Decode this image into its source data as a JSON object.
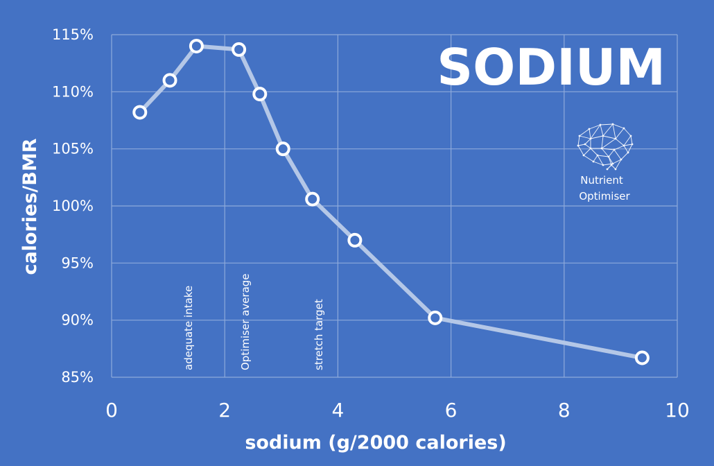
{
  "colors": {
    "background": "#4472c4",
    "grid": "#8eaadb",
    "line": "#b4c7e7",
    "marker_fill": "#4472c4",
    "marker_stroke": "#ffffff",
    "text": "#ffffff"
  },
  "logo": {
    "icon": "brain-network-icon",
    "line1": "Nutrient",
    "line2": "Optimiser"
  },
  "chart_data": {
    "type": "line",
    "title": "SODIUM",
    "xlabel": "sodium (g/2000 calories)",
    "ylabel": "calories/BMR",
    "xlim": [
      0,
      10
    ],
    "ylim": [
      0.85,
      1.15
    ],
    "x_ticks": [
      0,
      2,
      4,
      6,
      8,
      10
    ],
    "x_tick_labels": [
      "0",
      "2",
      "4",
      "6",
      "8",
      "10"
    ],
    "y_ticks": [
      0.85,
      0.9,
      0.95,
      1.0,
      1.05,
      1.1,
      1.15
    ],
    "y_tick_labels": [
      "85%",
      "90%",
      "95%",
      "100%",
      "105%",
      "110%",
      "115%"
    ],
    "grid": true,
    "series": [
      {
        "x": [
          0.5,
          1.03,
          1.5,
          2.25,
          2.62,
          3.03,
          3.55,
          4.3,
          5.72,
          9.38
        ],
        "y": [
          1.082,
          1.11,
          1.14,
          1.137,
          1.098,
          1.05,
          1.006,
          0.97,
          0.902,
          0.867
        ]
      }
    ],
    "annotations": [
      {
        "x": 2.0,
        "text": "adequate intake"
      },
      {
        "x": 3.0,
        "text": "Optimiser average"
      },
      {
        "x": 4.3,
        "text": "stretch target"
      }
    ]
  }
}
